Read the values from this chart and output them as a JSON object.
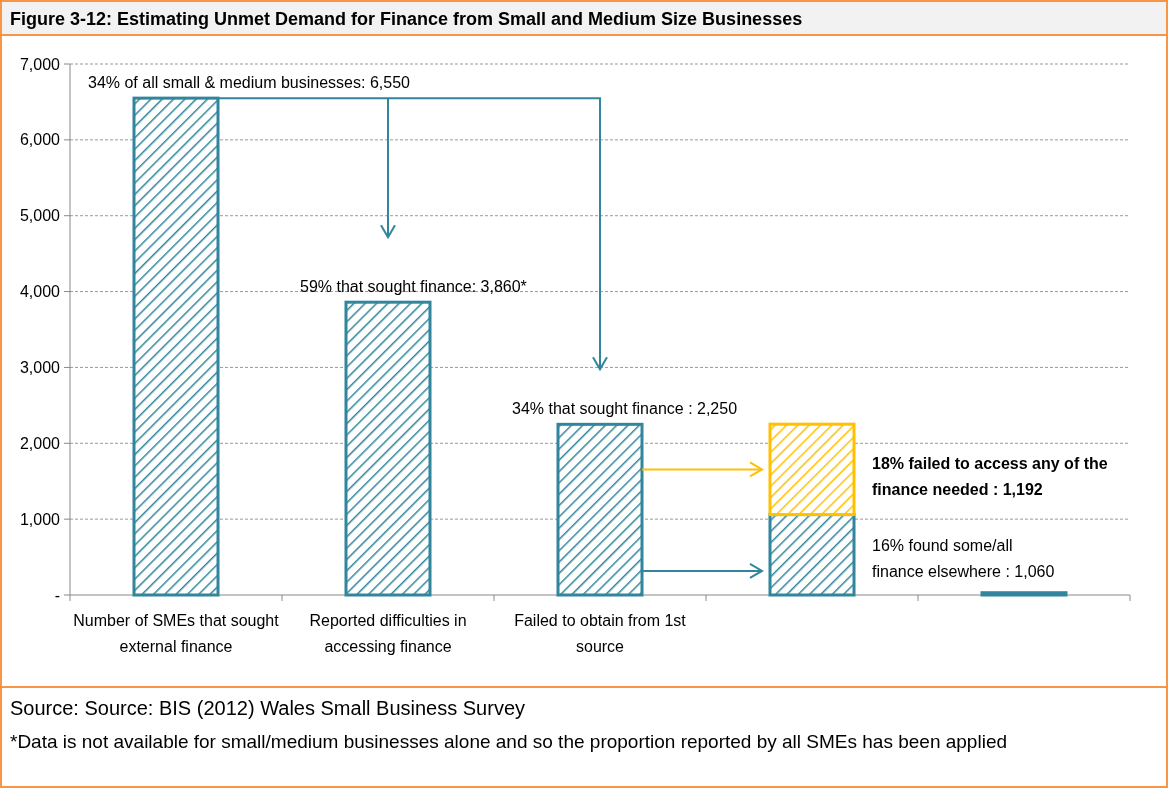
{
  "chart_data": {
    "type": "bar",
    "stacked": true,
    "title": "Figure 3-12: Estimating Unmet Demand for Finance from Small and Medium Size Businesses",
    "categories": [
      "Number of SMEs that sought external finance",
      "Reported difficulties in accessing finance",
      "Failed to obtain from 1st source",
      null,
      null
    ],
    "series": [
      {
        "color": "#31859c",
        "values": [
          6550,
          3860,
          2250,
          1060,
          30
        ]
      },
      {
        "color": "#ffc000",
        "values": [
          null,
          null,
          null,
          1192,
          null
        ]
      }
    ],
    "ylim": [
      0,
      7000
    ],
    "yticks": [
      {
        "value": 0,
        "label": "-"
      },
      {
        "value": 1000,
        "label": "1,000"
      },
      {
        "value": 2000,
        "label": "2,000"
      },
      {
        "value": 3000,
        "label": "3,000"
      },
      {
        "value": 4000,
        "label": "4,000"
      },
      {
        "value": 5000,
        "label": "5,000"
      },
      {
        "value": 6000,
        "label": "6,000"
      },
      {
        "value": 7000,
        "label": "7,000"
      }
    ],
    "grid": "y",
    "annotations": [
      {
        "text": "34% of all small & medium businesses: 6,550",
        "x": "Number of SMEs that sought external finance",
        "y": 6550
      },
      {
        "text": "59% that sought finance: 3,860*",
        "x": "Reported difficulties in accessing finance",
        "y": 3860
      },
      {
        "text": "34% that sought finance : 2,250",
        "x": "Failed to obtain from 1st source",
        "y": 2250
      },
      "18% failed to access any of the finance needed : 1,192",
      "16% found some/all finance elsewhere : 1,060",
      "Source: Source: BIS (2012) Wales Small Business Survey",
      "*Data is not available for small/medium businesses alone and so the proportion reported by all SMEs has been applied"
    ]
  }
}
